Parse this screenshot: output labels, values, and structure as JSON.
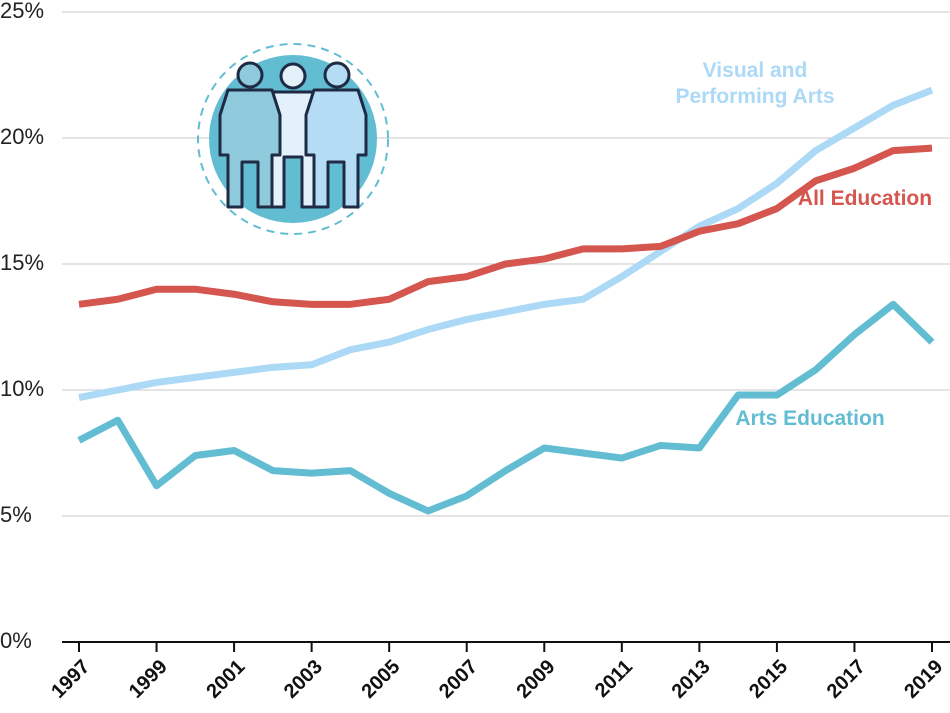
{
  "chart_data": {
    "type": "line",
    "x": [
      1997,
      1998,
      1999,
      2000,
      2001,
      2002,
      2003,
      2004,
      2005,
      2006,
      2007,
      2008,
      2009,
      2010,
      2011,
      2012,
      2013,
      2014,
      2015,
      2016,
      2017,
      2018,
      2019
    ],
    "series": [
      {
        "name": "Visual and Performing Arts",
        "color": "#acd9f6",
        "values": [
          9.7,
          10.0,
          10.3,
          10.5,
          10.7,
          10.9,
          11.0,
          11.6,
          11.9,
          12.4,
          12.8,
          13.1,
          13.4,
          13.6,
          14.5,
          15.5,
          16.5,
          17.2,
          18.2,
          19.5,
          20.4,
          21.3,
          21.9
        ]
      },
      {
        "name": "All Education",
        "color": "#d5554f",
        "values": [
          13.4,
          13.6,
          14.0,
          14.0,
          13.8,
          13.5,
          13.4,
          13.4,
          13.6,
          14.3,
          14.5,
          15.0,
          15.2,
          15.6,
          15.6,
          15.7,
          16.3,
          16.6,
          17.2,
          18.3,
          18.8,
          19.5,
          19.6
        ]
      },
      {
        "name": "Arts Education",
        "color": "#62bdd2",
        "values": [
          8.0,
          8.8,
          6.2,
          7.4,
          7.6,
          6.8,
          6.7,
          6.8,
          5.9,
          5.2,
          5.8,
          6.8,
          7.7,
          7.5,
          7.3,
          7.8,
          7.7,
          9.8,
          9.8,
          10.8,
          12.2,
          13.4,
          11.9
        ]
      }
    ],
    "xlim": [
      1997,
      2019
    ],
    "xticks": [
      1997,
      1999,
      2001,
      2003,
      2005,
      2007,
      2009,
      2011,
      2013,
      2015,
      2017,
      2019
    ],
    "ylim": [
      0,
      25
    ],
    "yticks": [
      {
        "value": 0,
        "label": "0%"
      },
      {
        "value": 5,
        "label": "5%"
      },
      {
        "value": 10,
        "label": "10%"
      },
      {
        "value": 15,
        "label": "15%"
      },
      {
        "value": 20,
        "label": "20%"
      },
      {
        "value": 25,
        "label": "25%"
      }
    ],
    "grid": true
  }
}
